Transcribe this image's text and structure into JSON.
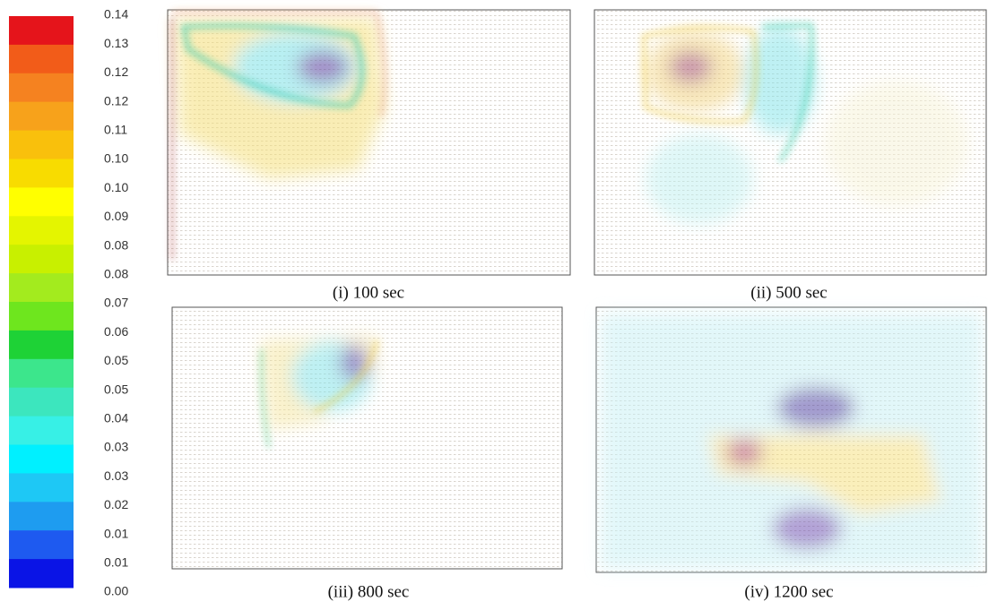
{
  "colorbar": {
    "labels": [
      "0.14",
      "0.13",
      "0.12",
      "0.12",
      "0.11",
      "0.10",
      "0.10",
      "0.09",
      "0.08",
      "0.08",
      "0.07",
      "0.06",
      "0.05",
      "0.05",
      "0.04",
      "0.03",
      "0.03",
      "0.02",
      "0.01",
      "0.01",
      "0.00"
    ],
    "colors": [
      "#e5141b",
      "#f25c19",
      "#f58220",
      "#f7a21b",
      "#f9c00c",
      "#f8dc00",
      "#ffff00",
      "#e4f500",
      "#c8f000",
      "#a3eb1e",
      "#6ee61e",
      "#1ed236",
      "#3ce68c",
      "#3ce6be",
      "#37f0e6",
      "#00f0ff",
      "#1ec8f5",
      "#1e9cf0",
      "#1e5af0",
      "#0a14e6"
    ]
  },
  "panels": [
    {
      "caption": "(i) 100 sec"
    },
    {
      "caption": "(ii) 500 sec"
    },
    {
      "caption": "(iii) 800 sec"
    },
    {
      "caption": "(iv) 1200 sec"
    }
  ]
}
